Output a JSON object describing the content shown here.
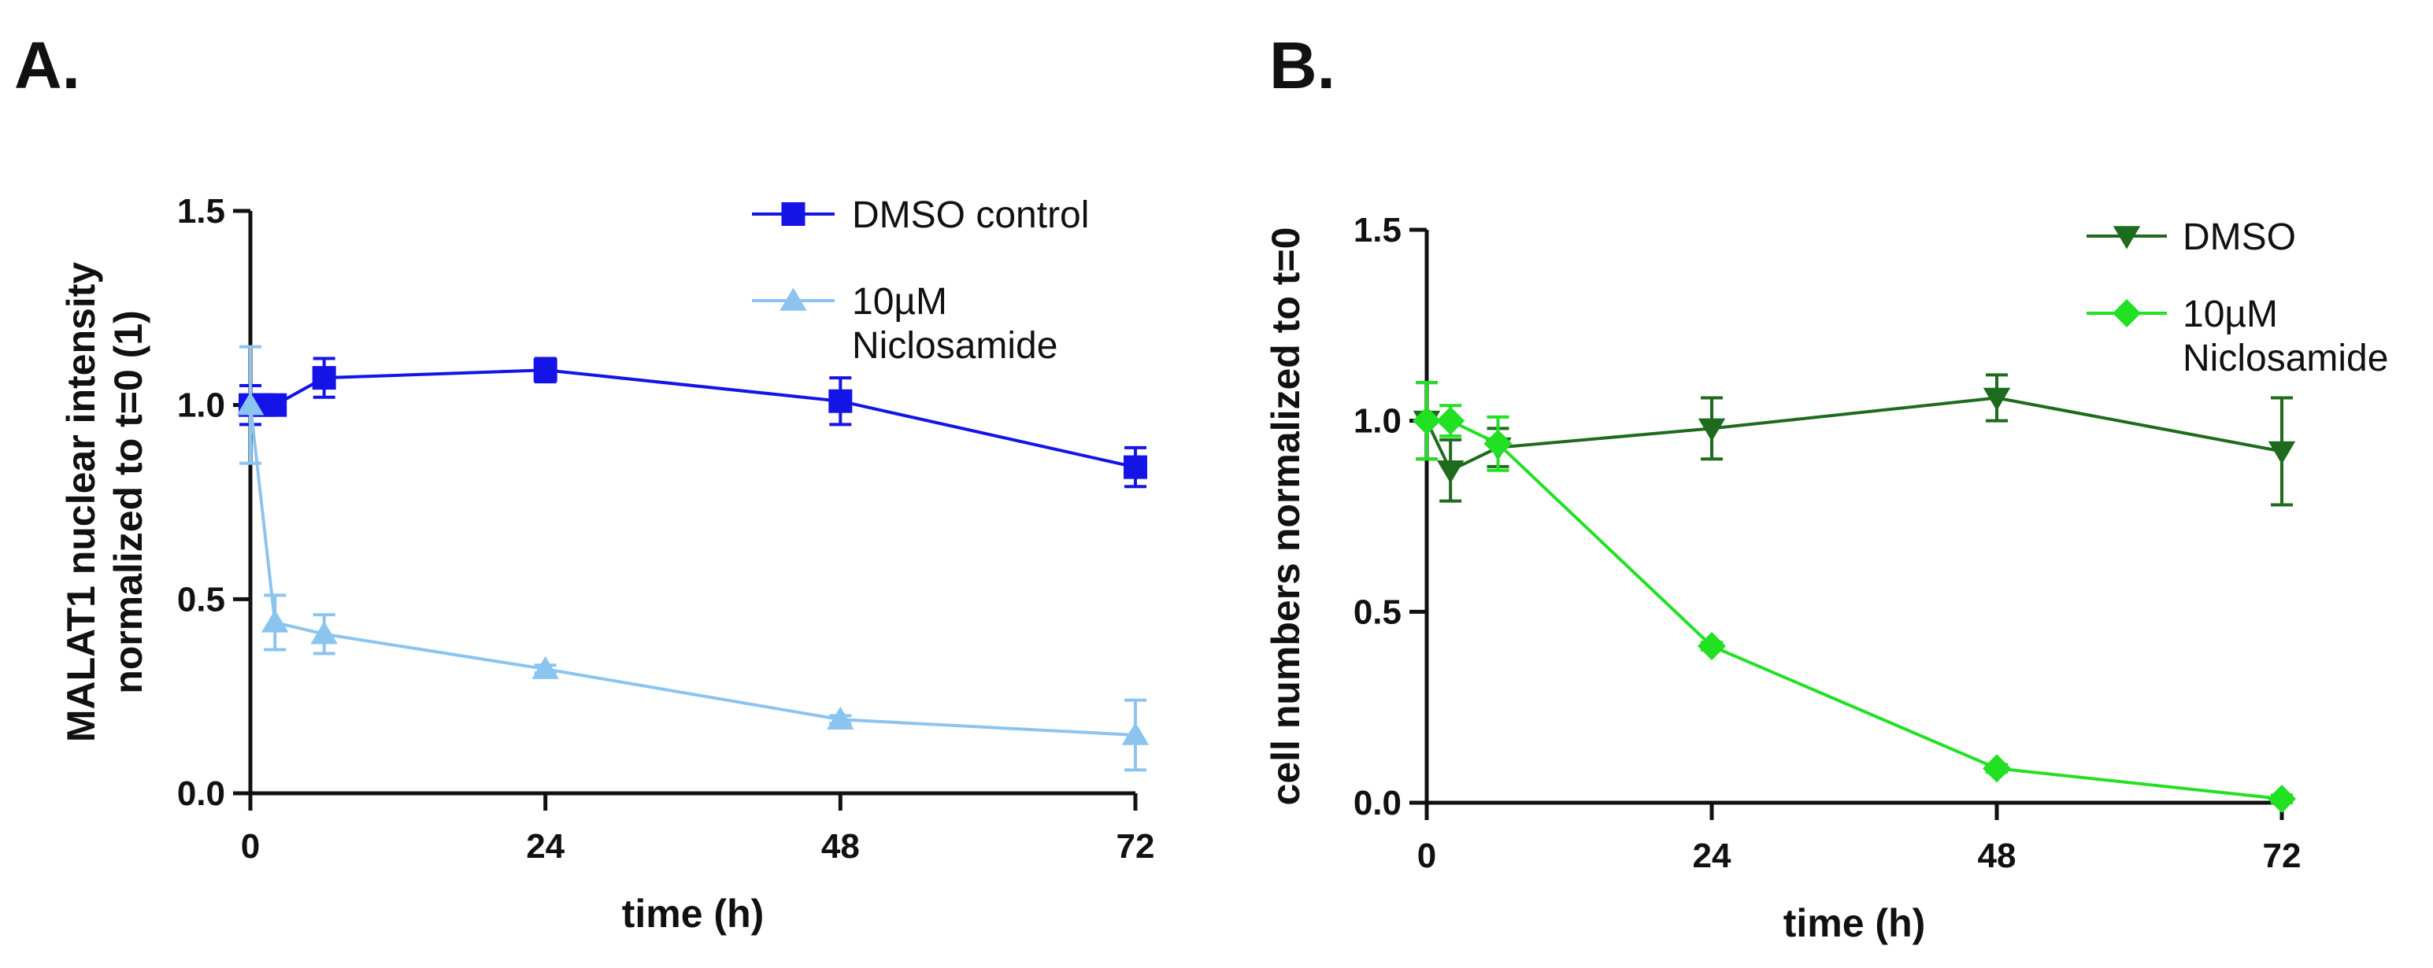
{
  "chart_data": [
    {
      "panel": "A.",
      "type": "line",
      "xlabel": "time (h)",
      "ylabel_lines": [
        "MALAT1 nuclear intensity",
        "normalized to t=0 (1)"
      ],
      "xlim": [
        0,
        72
      ],
      "ylim": [
        0,
        1.5
      ],
      "xticks": [
        0,
        24,
        48,
        72
      ],
      "xtick_labels": [
        "0",
        "24",
        "48",
        "72"
      ],
      "yticks": [
        0,
        0.5,
        1.0,
        1.5
      ],
      "ytick_labels": [
        "0.0",
        "0.5",
        "1.0",
        "1.5"
      ],
      "grid": false,
      "legend_position": "top-right",
      "series": [
        {
          "name_lines": [
            "DMSO control"
          ],
          "color": "#1414e6",
          "marker": "square",
          "x": [
            0,
            1,
            2,
            6,
            24,
            48,
            72
          ],
          "y": [
            1.0,
            1.0,
            1.0,
            1.07,
            1.09,
            1.01,
            0.84
          ],
          "err": [
            0.05,
            0.0,
            0.0,
            0.05,
            0.03,
            0.06,
            0.05
          ]
        },
        {
          "name_lines": [
            "10µM",
            "Niclosamide"
          ],
          "color": "#8cc4f0",
          "marker": "triangle-up",
          "x": [
            0,
            2,
            6,
            24,
            48,
            72
          ],
          "y": [
            1.0,
            0.44,
            0.41,
            0.32,
            0.19,
            0.15
          ],
          "err": [
            0.15,
            0.07,
            0.05,
            0.01,
            0.01,
            0.09
          ]
        }
      ]
    },
    {
      "panel": "B.",
      "type": "line",
      "xlabel": "time (h)",
      "ylabel_lines": [
        "cell numbers normalized to t=0"
      ],
      "xlim": [
        0,
        72
      ],
      "ylim": [
        0,
        1.5
      ],
      "xticks": [
        0,
        24,
        48,
        72
      ],
      "xtick_labels": [
        "0",
        "24",
        "48",
        "72"
      ],
      "yticks": [
        0,
        0.5,
        1.0,
        1.5
      ],
      "ytick_labels": [
        "0.0",
        "0.5",
        "1.0",
        "1.5"
      ],
      "grid": false,
      "legend_position": "top-right",
      "series": [
        {
          "name_lines": [
            "DMSO"
          ],
          "color": "#1e6b1e",
          "marker": "triangle-down",
          "x": [
            0,
            2,
            6,
            24,
            48,
            72
          ],
          "y": [
            1.0,
            0.87,
            0.93,
            0.98,
            1.06,
            0.92
          ],
          "err": [
            0.1,
            0.08,
            0.05,
            0.08,
            0.06,
            0.14
          ]
        },
        {
          "name_lines": [
            "10µM",
            "Niclosamide"
          ],
          "color": "#22e022",
          "marker": "diamond",
          "x": [
            0,
            2,
            6,
            24,
            48,
            72
          ],
          "y": [
            1.0,
            1.0,
            0.94,
            0.41,
            0.09,
            0.01
          ],
          "err": [
            0.1,
            0.04,
            0.07,
            0.01,
            0.01,
            0.01
          ]
        }
      ]
    }
  ]
}
